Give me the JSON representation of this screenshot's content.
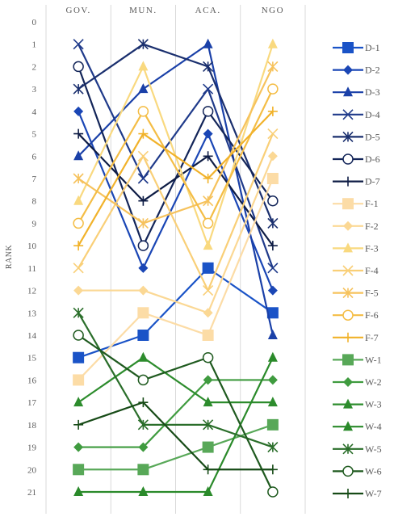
{
  "chart_data": {
    "type": "line",
    "title": "",
    "xlabel": "",
    "ylabel": "RANK",
    "ylim": [
      0,
      21
    ],
    "y_inverted": true,
    "y_ticks": [
      0,
      1,
      2,
      3,
      4,
      5,
      6,
      7,
      8,
      9,
      10,
      11,
      12,
      13,
      14,
      15,
      16,
      17,
      18,
      19,
      20,
      21
    ],
    "categories": [
      "GOV.",
      "MUN.",
      "ACA.",
      "NGO"
    ],
    "grid": "vertical",
    "legend": "right",
    "series": [
      {
        "name": "D-1",
        "color": "#1a53c7",
        "marker": "square",
        "values": [
          15,
          14,
          11,
          13
        ]
      },
      {
        "name": "D-2",
        "color": "#1a46b5",
        "marker": "diamond",
        "values": [
          4,
          11,
          5,
          12
        ]
      },
      {
        "name": "D-3",
        "color": "#1a40a8",
        "marker": "triangle",
        "values": [
          6,
          3,
          1,
          14
        ]
      },
      {
        "name": "D-4",
        "color": "#1f3a8a",
        "marker": "x",
        "values": [
          1,
          7,
          3,
          11
        ]
      },
      {
        "name": "D-5",
        "color": "#1a2f6e",
        "marker": "asterisk",
        "values": [
          3,
          1,
          2,
          9
        ]
      },
      {
        "name": "D-6",
        "color": "#132559",
        "marker": "circle",
        "values": [
          2,
          10,
          4,
          8
        ]
      },
      {
        "name": "D-7",
        "color": "#0e1c45",
        "marker": "plus",
        "values": [
          5,
          8,
          6,
          10
        ]
      },
      {
        "name": "F-1",
        "color": "#fcdca6",
        "marker": "square",
        "values": [
          16,
          13,
          14,
          7
        ]
      },
      {
        "name": "F-2",
        "color": "#fbd894",
        "marker": "diamond",
        "values": [
          12,
          12,
          13,
          6
        ]
      },
      {
        "name": "F-3",
        "color": "#f9d97f",
        "marker": "triangle",
        "values": [
          8,
          2,
          10,
          1
        ]
      },
      {
        "name": "F-4",
        "color": "#f9cf77",
        "marker": "x",
        "values": [
          11,
          6,
          12,
          5
        ]
      },
      {
        "name": "F-5",
        "color": "#f6c25c",
        "marker": "asterisk",
        "values": [
          7,
          9,
          8,
          2
        ]
      },
      {
        "name": "F-6",
        "color": "#f4bd45",
        "marker": "circle",
        "values": [
          9,
          4,
          9,
          3
        ]
      },
      {
        "name": "F-7",
        "color": "#f1b22a",
        "marker": "plus",
        "values": [
          10,
          5,
          7,
          4
        ]
      },
      {
        "name": "W-1",
        "color": "#58a858",
        "marker": "square",
        "values": [
          20,
          20,
          19,
          18
        ]
      },
      {
        "name": "W-2",
        "color": "#3f9b3f",
        "marker": "diamond",
        "values": [
          19,
          19,
          16,
          16
        ]
      },
      {
        "name": "W-3",
        "color": "#2d8c2d",
        "marker": "triangle",
        "values": [
          17,
          15,
          17,
          17
        ]
      },
      {
        "name": "W-4",
        "color": "#2a8a2a",
        "marker": "triangle",
        "values": [
          21,
          21,
          21,
          15
        ]
      },
      {
        "name": "W-5",
        "color": "#2a6e2a",
        "marker": "asterisk",
        "values": [
          13,
          18,
          18,
          19
        ]
      },
      {
        "name": "W-6",
        "color": "#1f5a1f",
        "marker": "circle",
        "values": [
          14,
          16,
          15,
          21
        ]
      },
      {
        "name": "W-7",
        "color": "#164a16",
        "marker": "plus",
        "values": [
          18,
          17,
          20,
          20
        ]
      }
    ]
  }
}
